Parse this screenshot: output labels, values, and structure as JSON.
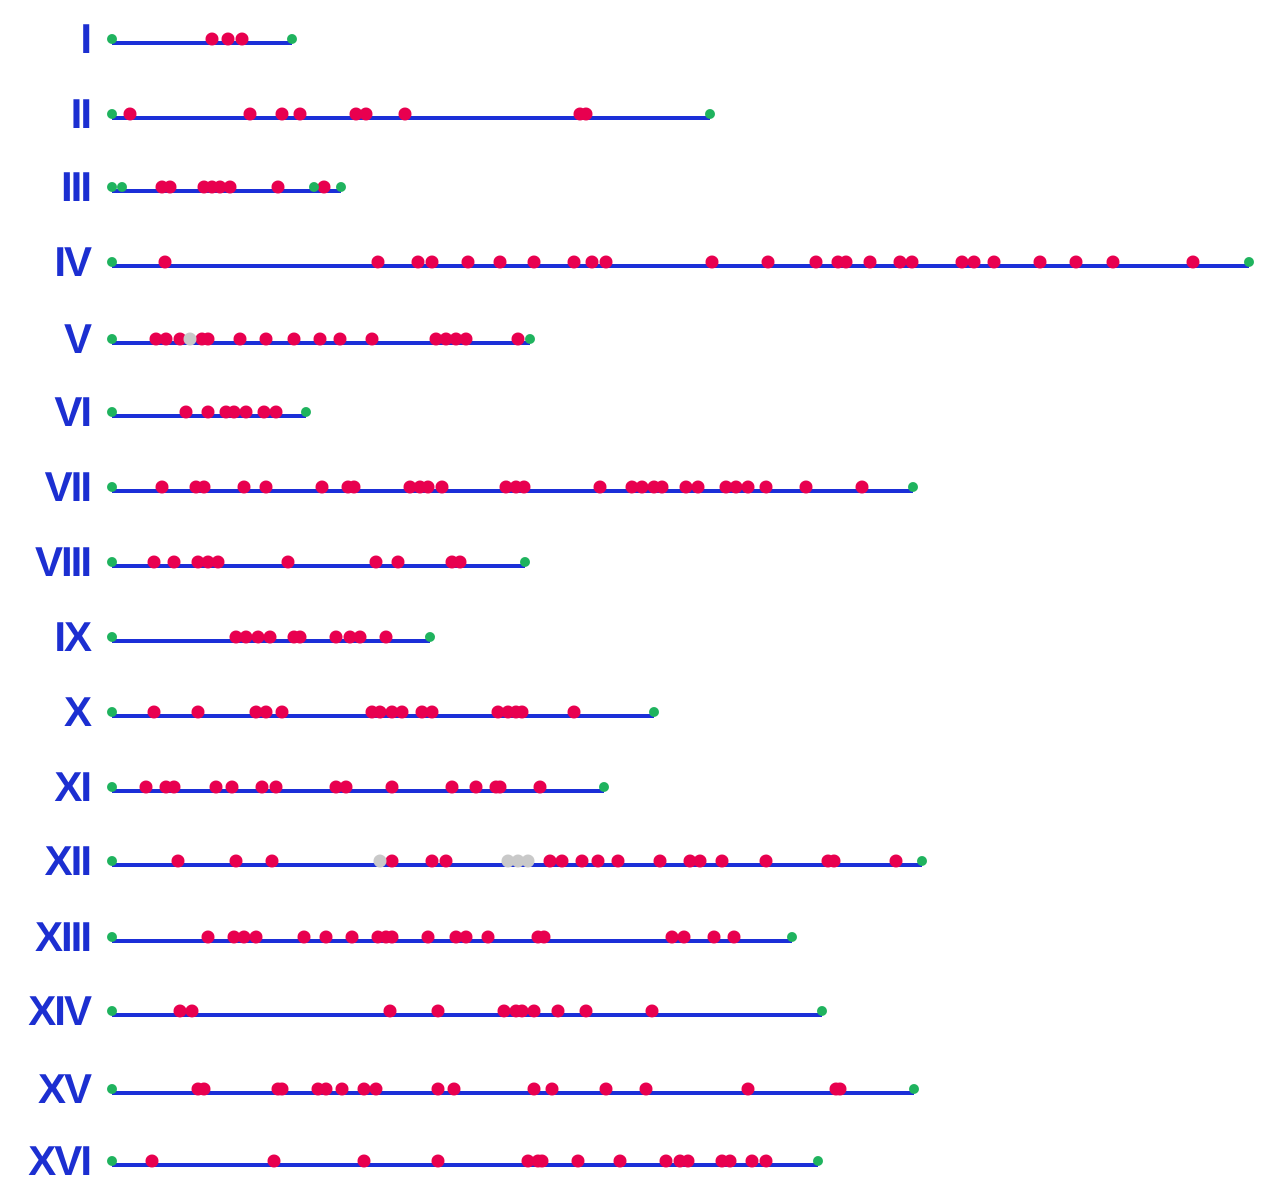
{
  "chart_data": {
    "type": "chromosome-map",
    "xlim": [
      0,
      1150
    ],
    "colors": {
      "label": "#1c2fd1",
      "line": "#1b2fd8",
      "red": "#e8004f",
      "green": "#1fb35e",
      "grey": "#c9c9c9"
    },
    "chromosomes": [
      {
        "label": "I",
        "length": 180,
        "green": [
          0,
          180
        ],
        "red": [
          100,
          116,
          130
        ],
        "grey": []
      },
      {
        "label": "II",
        "length": 598,
        "green": [
          0,
          598
        ],
        "red": [
          18,
          138,
          170,
          188,
          244,
          254,
          293,
          468,
          474
        ],
        "grey": []
      },
      {
        "label": "III",
        "length": 229,
        "green": [
          0,
          10,
          202,
          229
        ],
        "red": [
          50,
          58,
          92,
          100,
          108,
          118,
          166,
          212
        ],
        "grey": []
      },
      {
        "label": "IV",
        "length": 1137,
        "green": [
          0,
          1137
        ],
        "red": [
          53,
          266,
          306,
          320,
          356,
          388,
          422,
          462,
          480,
          494,
          600,
          656,
          704,
          726,
          734,
          758,
          788,
          800,
          850,
          862,
          882,
          928,
          964,
          1001,
          1081
        ],
        "grey": []
      },
      {
        "label": "V",
        "length": 418,
        "green": [
          0,
          418
        ],
        "red": [
          44,
          54,
          68,
          90,
          96,
          128,
          154,
          182,
          208,
          228,
          260,
          324,
          334,
          344,
          354,
          406
        ],
        "grey": [
          78
        ]
      },
      {
        "label": "VI",
        "length": 194,
        "green": [
          0,
          194
        ],
        "red": [
          74,
          96,
          114,
          122,
          134,
          152,
          164
        ],
        "grey": []
      },
      {
        "label": "VII",
        "length": 801,
        "green": [
          0,
          801
        ],
        "red": [
          50,
          84,
          92,
          132,
          154,
          210,
          236,
          242,
          298,
          308,
          316,
          330,
          394,
          404,
          412,
          488,
          520,
          530,
          542,
          550,
          574,
          586,
          614,
          624,
          636,
          654,
          694,
          750
        ],
        "grey": []
      },
      {
        "label": "VIII",
        "length": 413,
        "green": [
          0,
          413
        ],
        "red": [
          42,
          62,
          86,
          96,
          106,
          176,
          264,
          286,
          340,
          348
        ],
        "grey": []
      },
      {
        "label": "IX",
        "length": 318,
        "green": [
          0,
          318
        ],
        "red": [
          124,
          134,
          146,
          158,
          182,
          188,
          224,
          238,
          248,
          274
        ],
        "grey": []
      },
      {
        "label": "X",
        "length": 542,
        "green": [
          0,
          542
        ],
        "red": [
          42,
          86,
          144,
          154,
          170,
          260,
          268,
          280,
          290,
          310,
          320,
          386,
          396,
          404,
          410,
          462
        ],
        "grey": []
      },
      {
        "label": "XI",
        "length": 492,
        "green": [
          0,
          492
        ],
        "red": [
          34,
          54,
          62,
          104,
          120,
          150,
          164,
          224,
          234,
          280,
          340,
          364,
          384,
          388,
          428
        ],
        "grey": []
      },
      {
        "label": "XII",
        "length": 810,
        "green": [
          0,
          810
        ],
        "red": [
          66,
          124,
          160,
          280,
          320,
          334,
          438,
          450,
          470,
          486,
          506,
          548,
          578,
          588,
          610,
          654,
          716,
          722,
          784
        ],
        "grey": [
          268,
          396,
          406,
          416
        ]
      },
      {
        "label": "XIII",
        "length": 680,
        "green": [
          0,
          680
        ],
        "red": [
          96,
          122,
          132,
          144,
          192,
          214,
          240,
          266,
          274,
          280,
          316,
          344,
          354,
          376,
          426,
          432,
          560,
          572,
          602,
          622
        ],
        "grey": []
      },
      {
        "label": "XIV",
        "length": 710,
        "green": [
          0,
          710
        ],
        "red": [
          68,
          80,
          278,
          326,
          392,
          404,
          410,
          422,
          446,
          474,
          540
        ],
        "grey": []
      },
      {
        "label": "XV",
        "length": 802,
        "green": [
          0,
          802
        ],
        "red": [
          86,
          92,
          166,
          170,
          206,
          214,
          230,
          252,
          264,
          326,
          342,
          422,
          440,
          494,
          534,
          636,
          724,
          728
        ],
        "grey": []
      },
      {
        "label": "XVI",
        "length": 706,
        "green": [
          0,
          706
        ],
        "red": [
          40,
          162,
          252,
          326,
          416,
          426,
          430,
          466,
          508,
          554,
          568,
          576,
          610,
          618,
          640,
          654
        ],
        "grey": []
      }
    ]
  }
}
